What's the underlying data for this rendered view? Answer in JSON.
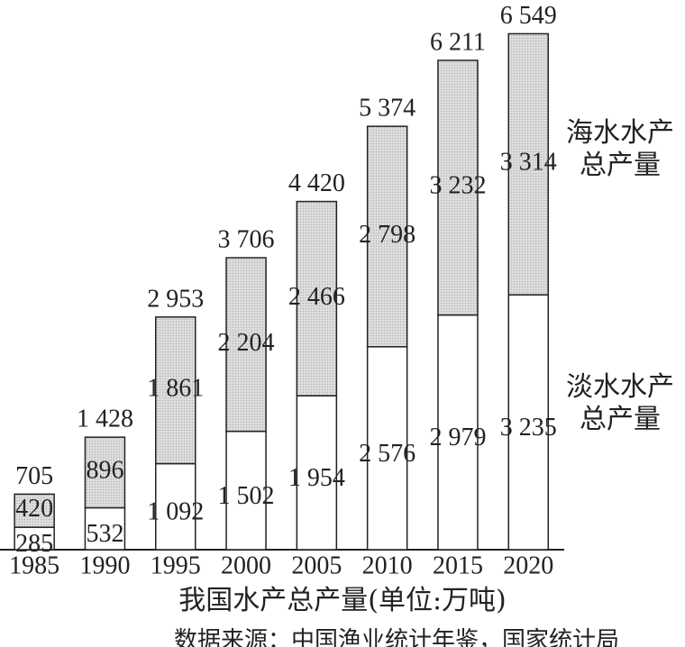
{
  "chart_data": {
    "type": "stacked-bar",
    "caption": "我国水产总产量(单位:万吨)",
    "source": "数据来源：中国渔业统计年鉴，国家统计局",
    "categories": [
      "1985",
      "1990",
      "1995",
      "2000",
      "2005",
      "2010",
      "2015",
      "2020"
    ],
    "series": [
      {
        "name": "淡水水产总产量",
        "color": "#ffffff",
        "values": [
          285,
          532,
          1092,
          1502,
          1954,
          2576,
          2979,
          3235
        ],
        "value_labels": [
          "285",
          "532",
          "1 092",
          "1 502",
          "1 954",
          "2 576",
          "2 979",
          "3 235"
        ]
      },
      {
        "name": "海水水产总产量",
        "color": "#d6d6d6",
        "values": [
          420,
          896,
          1861,
          2204,
          2466,
          2798,
          3232,
          3314
        ],
        "value_labels": [
          "420",
          "896",
          "1 861",
          "2 204",
          "2 466",
          "2 798",
          "3 232",
          "3 314"
        ]
      }
    ],
    "totals": [
      705,
      1428,
      2953,
      3706,
      4420,
      5374,
      6211,
      6549
    ],
    "total_labels": [
      "705",
      "1 428",
      "2 953",
      "3 706",
      "4 420",
      "5 374",
      "6 211",
      "6 549"
    ],
    "ylim": [
      0,
      6600
    ]
  }
}
